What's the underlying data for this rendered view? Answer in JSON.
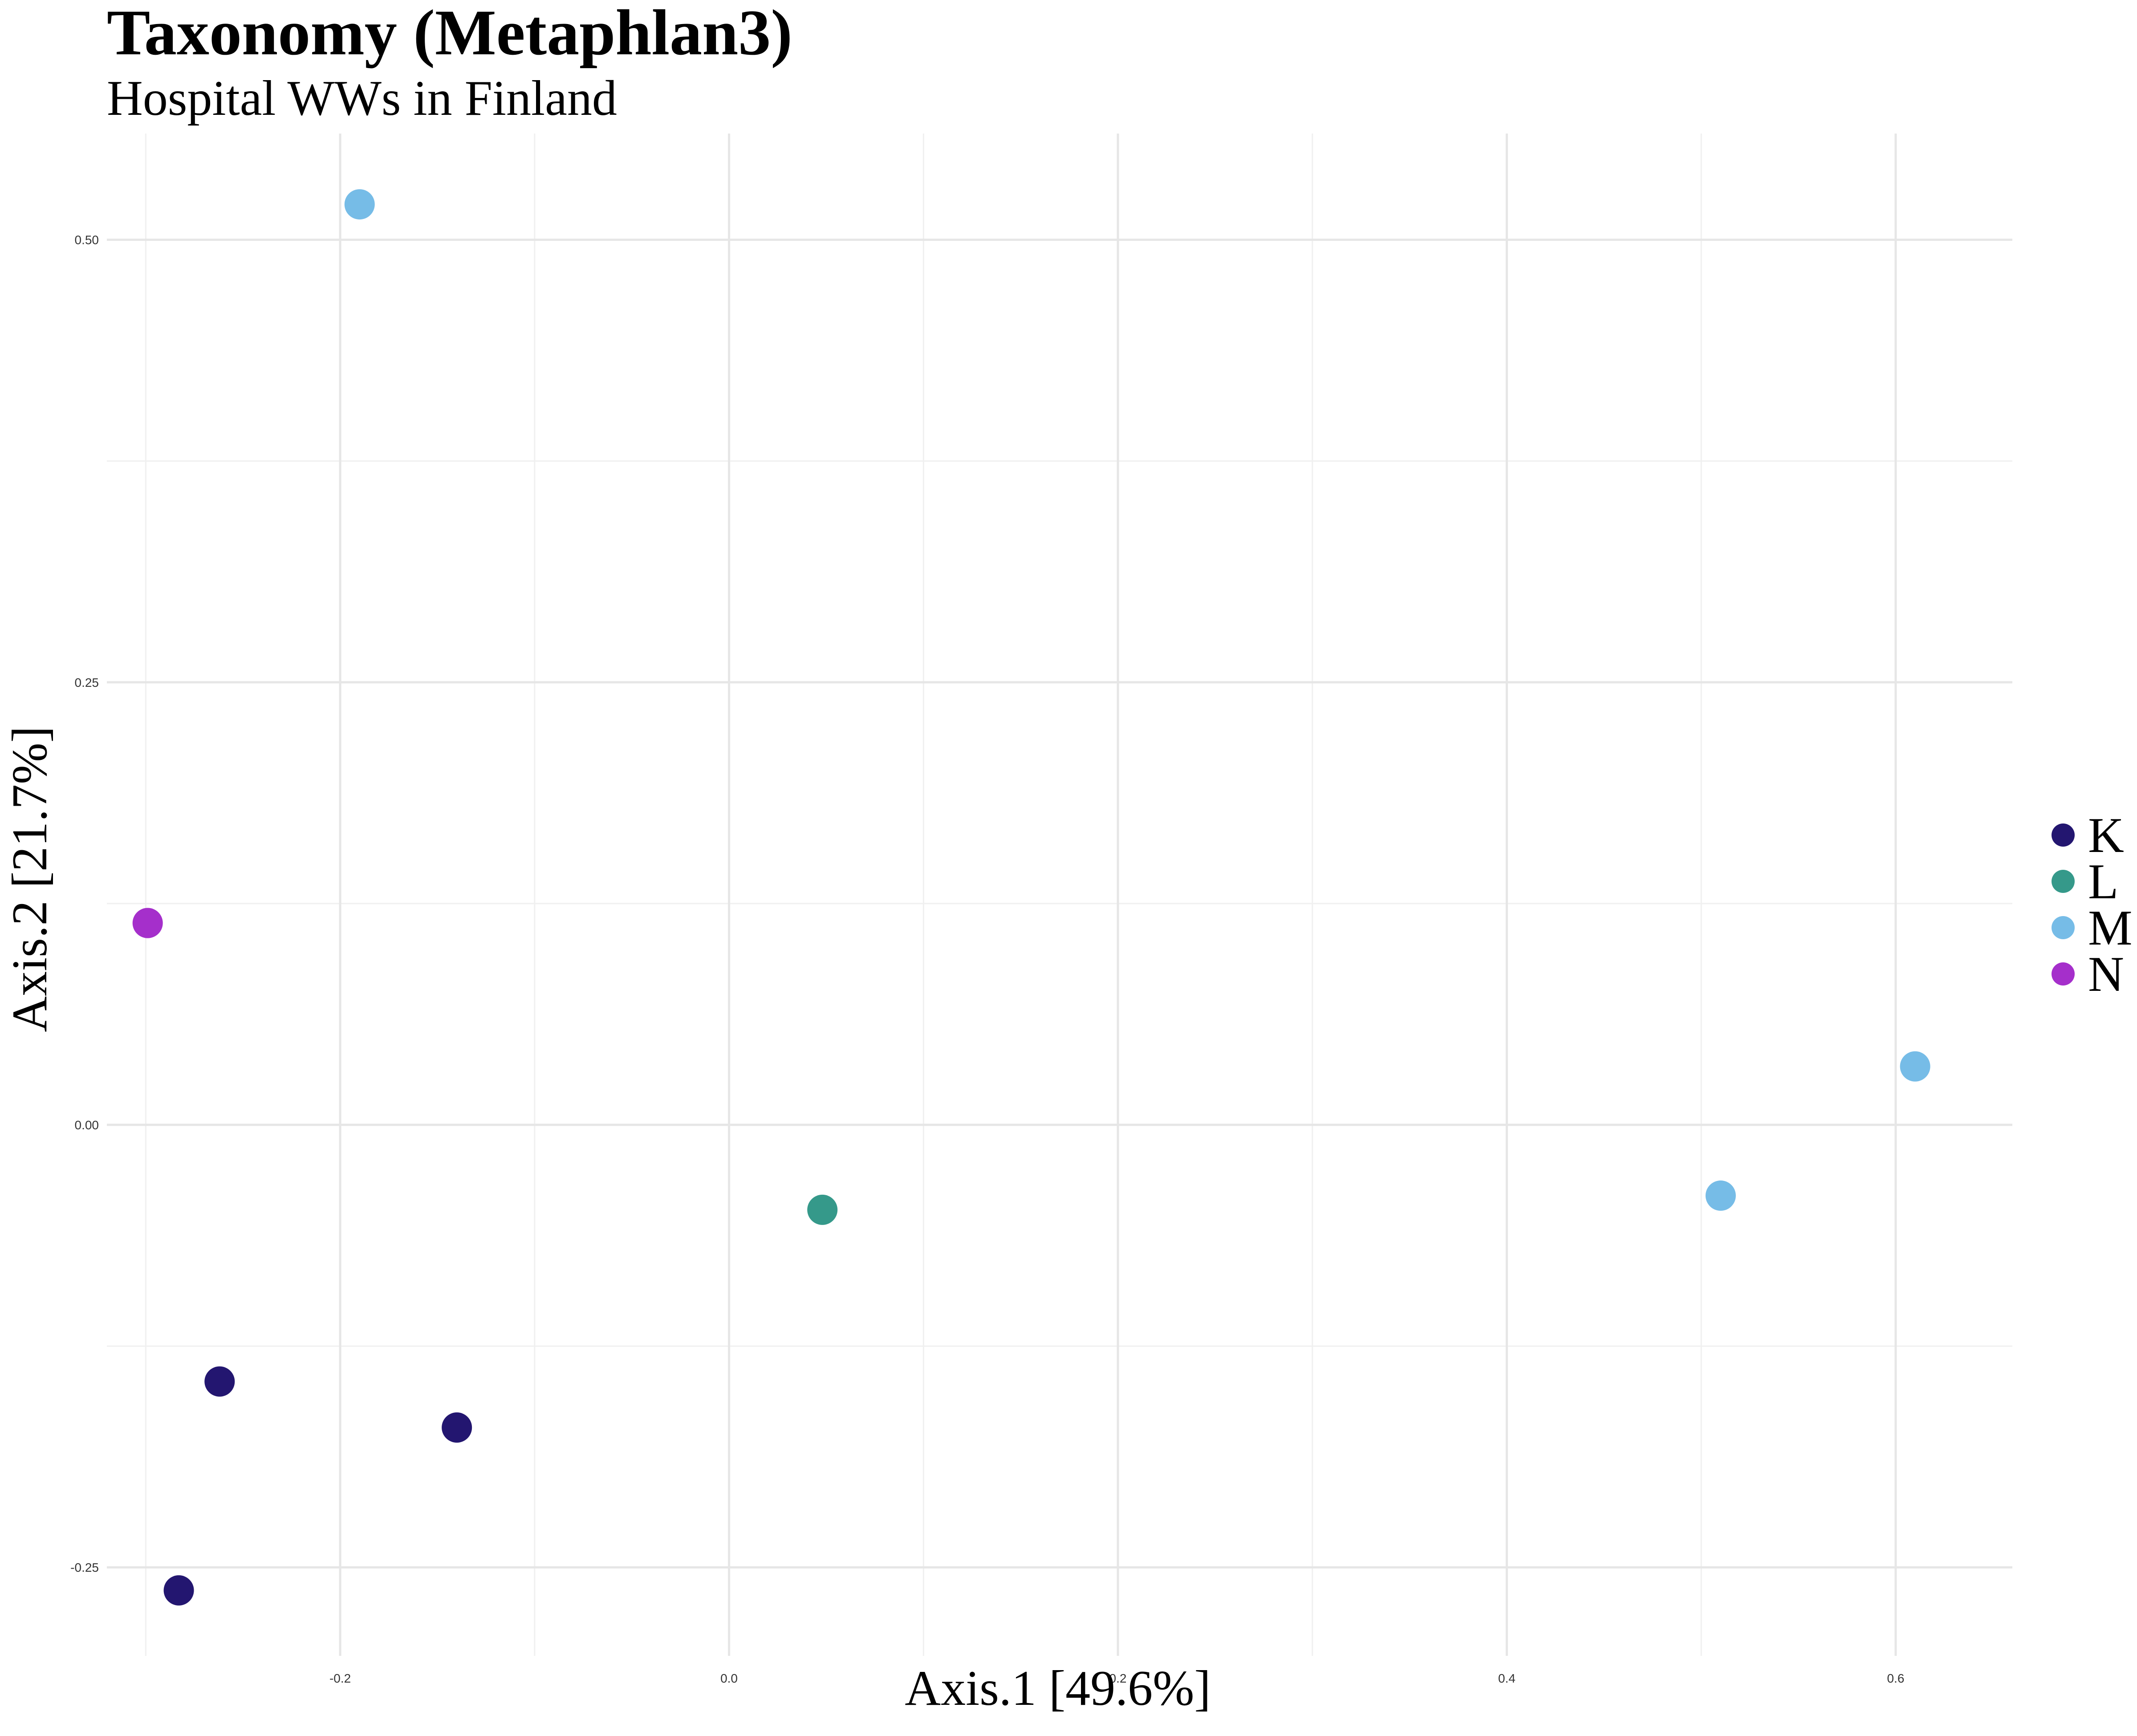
{
  "chart_data": {
    "type": "scatter",
    "title": "Taxonomy (Metaphlan3)",
    "subtitle": "Hospital WWs in Finland",
    "xlabel": "Axis.1   [49.6%]",
    "ylabel": "Axis.2   [21.7%]",
    "xlim": [
      -0.32,
      0.66
    ],
    "ylim": [
      -0.3,
      0.56
    ],
    "x_ticks": [
      -0.2,
      0.0,
      0.2,
      0.4,
      0.6
    ],
    "x_tick_labels": [
      "-0.2",
      "0.0",
      "0.2",
      "0.4",
      "0.6"
    ],
    "y_ticks": [
      -0.25,
      0.0,
      0.25,
      0.5
    ],
    "y_tick_labels": [
      "-0.25",
      "0.00",
      "0.25",
      "0.50"
    ],
    "grid": true,
    "legend_position": "right",
    "series": [
      {
        "name": "K",
        "color": "#231670",
        "points": [
          [
            -0.262,
            -0.145
          ],
          [
            -0.14,
            -0.171
          ],
          [
            -0.283,
            -0.263
          ]
        ]
      },
      {
        "name": "L",
        "color": "#35998A",
        "points": [
          [
            0.048,
            -0.048
          ]
        ]
      },
      {
        "name": "M",
        "color": "#76BCE7",
        "points": [
          [
            -0.19,
            0.52
          ],
          [
            0.51,
            -0.04
          ],
          [
            0.61,
            0.033
          ]
        ]
      },
      {
        "name": "N",
        "color": "#A52FCB",
        "points": [
          [
            -0.299,
            0.114
          ]
        ]
      }
    ]
  }
}
